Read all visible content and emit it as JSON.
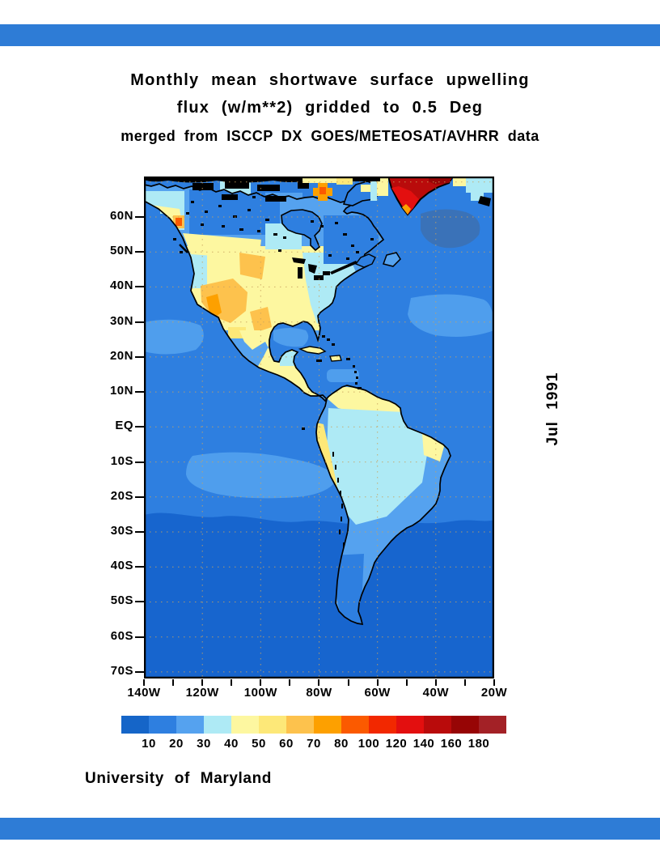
{
  "page": {
    "top_bar_color": "#2e7cd6",
    "bottom_bar_color": "#2e7cd6",
    "background": "#ffffff"
  },
  "title": {
    "line1": "Monthly mean shortwave surface upwelling",
    "line2": "flux (w/m**2) gridded to 0.5 Deg",
    "subtitle": "merged from ISCCP DX GOES/METEOSAT/AVHRR data"
  },
  "side_label": "Jul 1991",
  "footer": "University of Maryland",
  "map": {
    "lat_ticks": [
      "60N",
      "50N",
      "40N",
      "30N",
      "20N",
      "10N",
      "EQ",
      "10S",
      "20S",
      "30S",
      "40S",
      "50S",
      "60S",
      "70S"
    ],
    "lon_ticks": [
      "140W",
      "120W",
      "100W",
      "80W",
      "60W",
      "40W",
      "20W"
    ],
    "grid_color": "#c9a35f",
    "frame_color": "#000000",
    "ocean_colors": {
      "north": "#2e7fe0",
      "south_dark": "#1765ce",
      "light_patch": "#4f9eed",
      "pale_patch": "#aeeaf5",
      "north_atlantic_blob": "#3a72b8"
    }
  },
  "colorbar": {
    "unit": "w/m**2",
    "labels": [
      "10",
      "20",
      "30",
      "40",
      "50",
      "60",
      "70",
      "80",
      "100",
      "120",
      "140",
      "160",
      "180"
    ],
    "colors": [
      "#1565c8",
      "#2e7fe0",
      "#55a2ef",
      "#aeeaf5",
      "#fdf7a0",
      "#fde878",
      "#fdc24d",
      "#fda000",
      "#fb5a00",
      "#f22800",
      "#e30f0f",
      "#b90b0b",
      "#970505",
      "#a32126"
    ]
  },
  "chart_data": {
    "type": "heatmap",
    "title": "Monthly mean shortwave surface upwelling flux (w/m**2) gridded to 0.5 Deg",
    "subtitle": "merged from ISCCP DX GOES/METEOSAT/AVHRR data",
    "time": "Jul 1991",
    "units": "w/m**2",
    "x_axis": {
      "label": "longitude",
      "ticks": [
        "140W",
        "120W",
        "100W",
        "80W",
        "60W",
        "40W",
        "20W"
      ],
      "tick_step_deg": 10,
      "label_step_deg": 20
    },
    "y_axis": {
      "label": "latitude",
      "ticks": [
        "60N",
        "50N",
        "40N",
        "30N",
        "20N",
        "10N",
        "EQ",
        "10S",
        "20S",
        "30S",
        "40S",
        "50S",
        "60S",
        "70S"
      ],
      "tick_step_deg": 10
    },
    "colorbar_breaks": [
      10,
      20,
      30,
      40,
      50,
      60,
      70,
      80,
      100,
      120,
      140,
      160,
      180
    ],
    "colorbar_colors": [
      "#1565c8",
      "#2e7fe0",
      "#55a2ef",
      "#aeeaf5",
      "#fdf7a0",
      "#fde878",
      "#fdc24d",
      "#fda000",
      "#fb5a00",
      "#f22800",
      "#e30f0f",
      "#b90b0b",
      "#970505",
      "#a32126"
    ],
    "grid": true,
    "legend_position": "bottom",
    "approx_values_from_colors": {
      "northern_ocean": "10-20",
      "southern_ocean_below_25S": "<10",
      "subtropical_ocean_patches": "20-30",
      "us_interior_west": "50-80",
      "us_and_mexico_plains": "40-50",
      "canada_and_amazon_basin": "30-40",
      "greenland_ice_sheet": "140-180+",
      "arctic_island_spot": "70-80"
    }
  }
}
